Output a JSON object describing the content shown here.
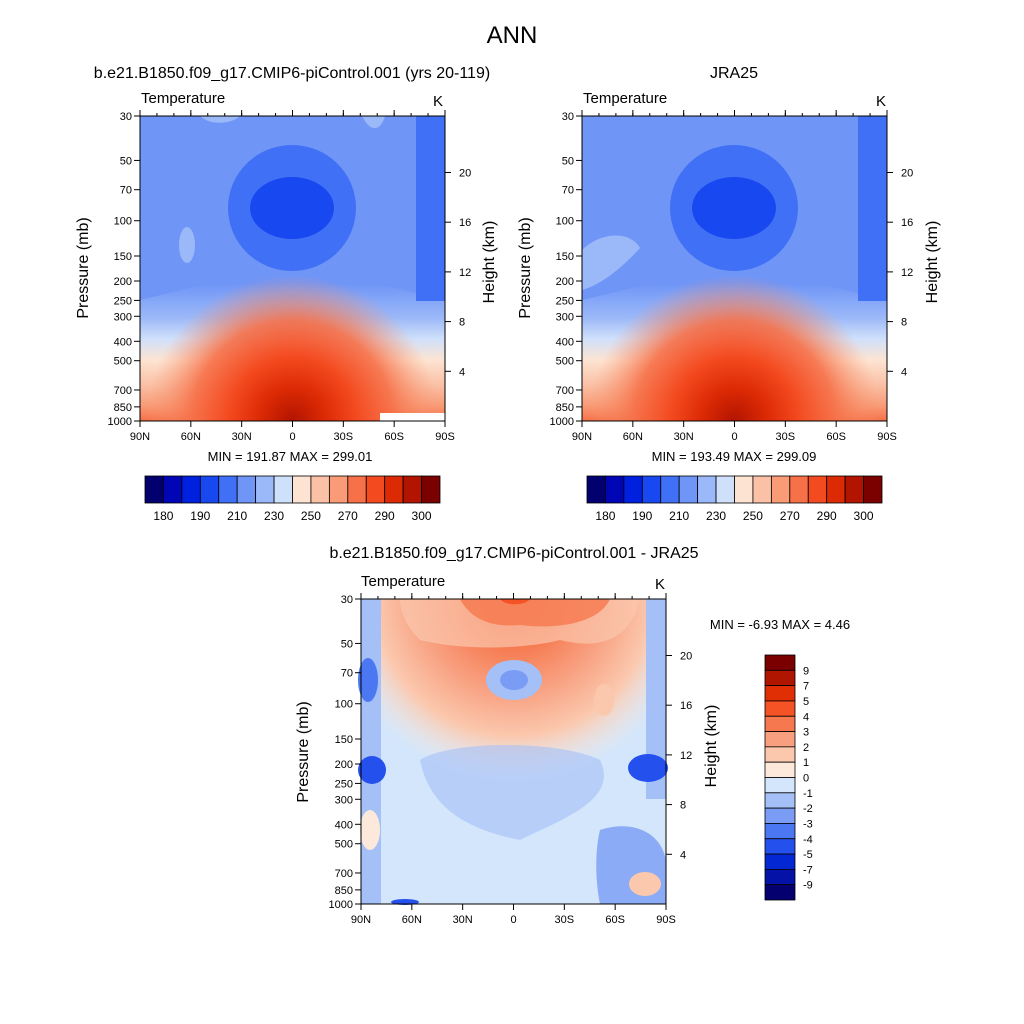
{
  "title": "ANN",
  "chart_data": [
    {
      "type": "heatmap",
      "title": "b.e21.B1850.f09_g17.CMIP6-piControl.001 (yrs 20-119)",
      "left_label": "Temperature",
      "units": "K",
      "xlabel": "",
      "ylabel": "Pressure (mb)",
      "ylabel_right": "Height (km)",
      "x_ticks": [
        "90N",
        "60N",
        "30N",
        "0",
        "30S",
        "60S",
        "90S"
      ],
      "x_values": [
        90,
        60,
        30,
        0,
        -30,
        -60,
        -90
      ],
      "y_ticks": [
        "30",
        "50",
        "70",
        "100",
        "150",
        "200",
        "250",
        "300",
        "400",
        "500",
        "700",
        "850",
        "1000"
      ],
      "y_values": [
        30,
        50,
        70,
        100,
        150,
        200,
        250,
        300,
        400,
        500,
        700,
        850,
        1000
      ],
      "yr_ticks": [
        "20",
        "16",
        "12",
        "8",
        "4"
      ],
      "yr_values": [
        20,
        16,
        12,
        8,
        4
      ],
      "ylim": [
        1000,
        30
      ],
      "xlim": [
        90,
        -90
      ],
      "stats_text": "MIN = 191.87  MAX = 299.01",
      "min": 191.87,
      "max": 299.01
    },
    {
      "type": "heatmap",
      "title": "JRA25",
      "left_label": "Temperature",
      "units": "K",
      "xlabel": "",
      "ylabel": "Pressure (mb)",
      "ylabel_right": "Height (km)",
      "x_ticks": [
        "90N",
        "60N",
        "30N",
        "0",
        "30S",
        "60S",
        "90S"
      ],
      "x_values": [
        90,
        60,
        30,
        0,
        -30,
        -60,
        -90
      ],
      "y_ticks": [
        "30",
        "50",
        "70",
        "100",
        "150",
        "200",
        "250",
        "300",
        "400",
        "500",
        "700",
        "850",
        "1000"
      ],
      "y_values": [
        30,
        50,
        70,
        100,
        150,
        200,
        250,
        300,
        400,
        500,
        700,
        850,
        1000
      ],
      "yr_ticks": [
        "20",
        "16",
        "12",
        "8",
        "4"
      ],
      "yr_values": [
        20,
        16,
        12,
        8,
        4
      ],
      "ylim": [
        1000,
        30
      ],
      "xlim": [
        90,
        -90
      ],
      "stats_text": "MIN = 193.49  MAX = 299.09",
      "min": 193.49,
      "max": 299.09
    },
    {
      "type": "heatmap",
      "title": "b.e21.B1850.f09_g17.CMIP6-piControl.001 - JRA25",
      "left_label": "Temperature",
      "units": "K",
      "xlabel": "",
      "ylabel": "Pressure (mb)",
      "ylabel_right": "Height (km)",
      "x_ticks": [
        "90N",
        "60N",
        "30N",
        "0",
        "30S",
        "60S",
        "90S"
      ],
      "x_values": [
        90,
        60,
        30,
        0,
        -30,
        -60,
        -90
      ],
      "y_ticks": [
        "30",
        "50",
        "70",
        "100",
        "150",
        "200",
        "250",
        "300",
        "400",
        "500",
        "700",
        "850",
        "1000"
      ],
      "y_values": [
        30,
        50,
        70,
        100,
        150,
        200,
        250,
        300,
        400,
        500,
        700,
        850,
        1000
      ],
      "yr_ticks": [
        "20",
        "16",
        "12",
        "8",
        "4"
      ],
      "yr_values": [
        20,
        16,
        12,
        8,
        4
      ],
      "ylim": [
        1000,
        30
      ],
      "xlim": [
        90,
        -90
      ],
      "stats_text": "MIN =  -6.93  MAX =   4.46",
      "min": -6.93,
      "max": 4.46
    }
  ],
  "colorbars": {
    "temperature": {
      "orientation": "horizontal",
      "colors": [
        "#02006e",
        "#0005b6",
        "#0020e0",
        "#1848f0",
        "#4070f5",
        "#6f95f7",
        "#9bb8f8",
        "#cfe0fb",
        "#fde4d2",
        "#fac1a6",
        "#f89b76",
        "#f67048",
        "#f44a20",
        "#dc2a05",
        "#b31400",
        "#7b0000"
      ],
      "labels": [
        "180",
        "190",
        "210",
        "230",
        "250",
        "270",
        "290",
        "300"
      ]
    },
    "difference": {
      "orientation": "vertical",
      "colors": [
        "#7a0000",
        "#b01500",
        "#e02f05",
        "#f55226",
        "#f6784e",
        "#f89f7f",
        "#fbc8ae",
        "#fde9dc",
        "#d3e6fb",
        "#a5c0f7",
        "#7a9cf5",
        "#4b77f2",
        "#2450ee",
        "#0328d3",
        "#0512a8",
        "#040070"
      ],
      "labels": [
        "9",
        "7",
        "5",
        "4",
        "3",
        "2",
        "1",
        "0",
        "-1",
        "-2",
        "-3",
        "-4",
        "-5",
        "-7",
        "-9"
      ]
    }
  }
}
